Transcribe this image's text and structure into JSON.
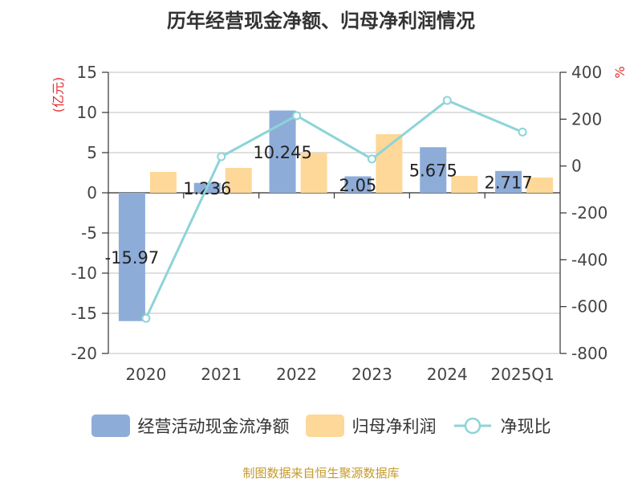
{
  "title": "历年经营现金净额、归母净利润情况",
  "source": "制图数据来自恒生聚源数据库",
  "colors": {
    "cash": "#8eacd8",
    "profit": "#fdd898",
    "ratio": "#8dd4d8",
    "unit": "#e03030"
  },
  "chart_data": {
    "type": "bar",
    "categories": [
      "2020",
      "2021",
      "2022",
      "2023",
      "2024",
      "2025Q1"
    ],
    "series": [
      {
        "name": "经营活动现金流净额",
        "type": "bar",
        "axis": "left",
        "values": [
          -15.97,
          1.236,
          10.245,
          2.05,
          5.675,
          2.717
        ],
        "labels": [
          "-15.97",
          "1.236",
          "10.245",
          "2.05",
          "5.675",
          "2.717"
        ]
      },
      {
        "name": "归母净利润",
        "type": "bar",
        "axis": "left",
        "values": [
          2.6,
          3.1,
          5.0,
          7.3,
          2.1,
          1.9
        ]
      },
      {
        "name": "净现比",
        "type": "line",
        "axis": "right",
        "values": [
          -650,
          40,
          215,
          30,
          280,
          145
        ]
      }
    ],
    "y_left": {
      "unit": "(亿元)",
      "ylim": [
        -20,
        15
      ],
      "ticks": [
        -20,
        -15,
        -10,
        -5,
        0,
        5,
        10,
        15
      ]
    },
    "y_right": {
      "unit": "%",
      "ylim": [
        -800,
        400
      ],
      "ticks": [
        -800,
        -600,
        -400,
        -200,
        0,
        200,
        400
      ]
    },
    "grid": true,
    "legend_position": "bottom"
  }
}
